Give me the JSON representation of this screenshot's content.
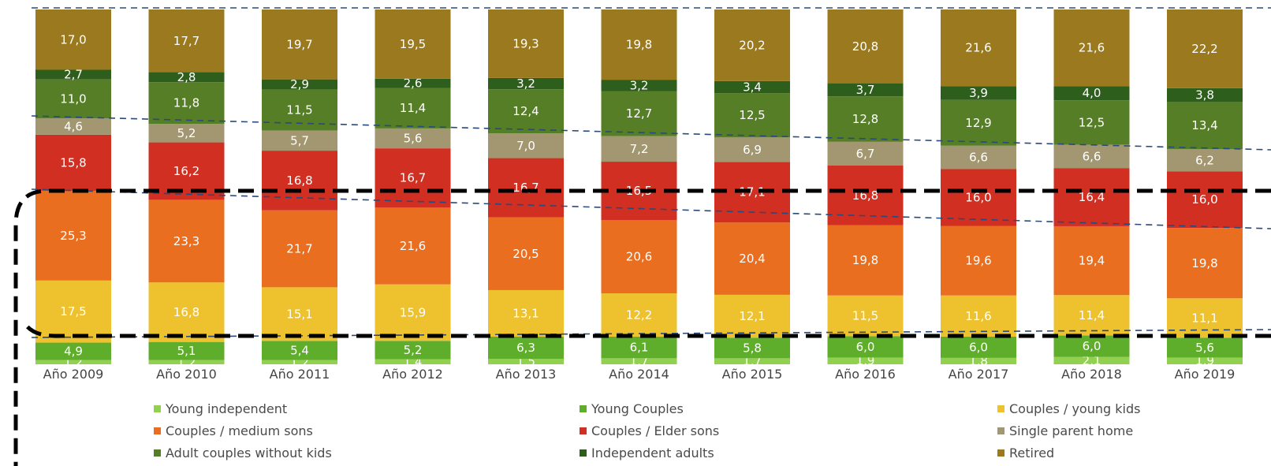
{
  "chart_data": {
    "type": "bar",
    "stacked": true,
    "categories": [
      "Año 2009",
      "Año 2010",
      "Año 2011",
      "Año 2012",
      "Año 2013",
      "Año 2014",
      "Año 2015",
      "Año 2016",
      "Año 2017",
      "Año 2018",
      "Año 2019"
    ],
    "series": [
      {
        "name": "Young independent",
        "color": "#92d050",
        "values": [
          1.2,
          1.2,
          1.2,
          1.4,
          1.5,
          1.7,
          1.7,
          1.9,
          1.8,
          2.1,
          1.9
        ],
        "labels": [
          "1,2",
          "1,2",
          "1,2",
          "1,4",
          "1,5",
          "1,7",
          "1,7",
          "1,9",
          "1,8",
          "2,1",
          "1,9"
        ]
      },
      {
        "name": "Young Couples",
        "color": "#5fae2b",
        "values": [
          4.9,
          5.1,
          5.4,
          5.2,
          6.3,
          6.1,
          5.8,
          6.0,
          6.0,
          6.0,
          5.6
        ],
        "labels": [
          "4,9",
          "5,1",
          "5,4",
          "5,2",
          "6,3",
          "6,1",
          "5,8",
          "6,0",
          "6,0",
          "6,0",
          "5,6"
        ]
      },
      {
        "name": "Couples / young kids",
        "color": "#eec12e",
        "values": [
          17.5,
          16.8,
          15.1,
          15.9,
          13.1,
          12.2,
          12.1,
          11.5,
          11.6,
          11.4,
          11.1
        ],
        "labels": [
          "17,5",
          "16,8",
          "15,1",
          "15,9",
          "13,1",
          "12,2",
          "12,1",
          "11,5",
          "11,6",
          "11,4",
          "11,1"
        ]
      },
      {
        "name": "Couples / medium sons",
        "color": "#ea6e1f",
        "values": [
          25.3,
          23.3,
          21.7,
          21.6,
          20.5,
          20.6,
          20.4,
          19.8,
          19.6,
          19.4,
          19.8
        ],
        "labels": [
          "25,3",
          "23,3",
          "21,7",
          "21,6",
          "20,5",
          "20,6",
          "20,4",
          "19,8",
          "19,6",
          "19,4",
          "19,8"
        ]
      },
      {
        "name": "Couples / Elder sons",
        "color": "#d02f22",
        "values": [
          15.8,
          16.2,
          16.8,
          16.7,
          16.7,
          16.5,
          17.1,
          16.8,
          16.0,
          16.4,
          16.0
        ],
        "labels": [
          "15,8",
          "16,2",
          "16,8",
          "16,7",
          "16,7",
          "16,5",
          "17,1",
          "16,8",
          "16,0",
          "16,4",
          "16,0"
        ]
      },
      {
        "name": "Single parent home",
        "color": "#a39771",
        "values": [
          4.6,
          5.2,
          5.7,
          5.6,
          7.0,
          7.2,
          6.9,
          6.7,
          6.6,
          6.6,
          6.2
        ],
        "labels": [
          "4,6",
          "5,2",
          "5,7",
          "5,6",
          "7,0",
          "7,2",
          "6,9",
          "6,7",
          "6,6",
          "6,6",
          "6,2"
        ]
      },
      {
        "name": "Adult couples without kids",
        "color": "#567e26",
        "values": [
          11.0,
          11.8,
          11.5,
          11.4,
          12.4,
          12.7,
          12.5,
          12.8,
          12.9,
          12.5,
          13.4
        ],
        "labels": [
          "11,0",
          "11,8",
          "11,5",
          "11,4",
          "12,4",
          "12,7",
          "12,5",
          "12,8",
          "12,9",
          "12,5",
          "13,4"
        ]
      },
      {
        "name": "Independent adults",
        "color": "#2e5e1c",
        "values": [
          2.7,
          2.8,
          2.9,
          2.6,
          3.2,
          3.2,
          3.4,
          3.7,
          3.9,
          4.0,
          3.8
        ],
        "labels": [
          "2,7",
          "2,8",
          "2,9",
          "2,6",
          "3,2",
          "3,2",
          "3,4",
          "3,7",
          "3,9",
          "4,0",
          "3,8"
        ]
      },
      {
        "name": "Retired",
        "color": "#9b7a1f",
        "values": [
          17.0,
          17.7,
          19.7,
          19.5,
          19.3,
          19.8,
          20.2,
          20.8,
          21.6,
          21.6,
          22.2
        ],
        "labels": [
          "17,0",
          "17,7",
          "19,7",
          "19,5",
          "19,3",
          "19,8",
          "20,2",
          "20,8",
          "21,6",
          "21,6",
          "22,2"
        ]
      }
    ],
    "legend_position": "bottom",
    "grid": false
  }
}
